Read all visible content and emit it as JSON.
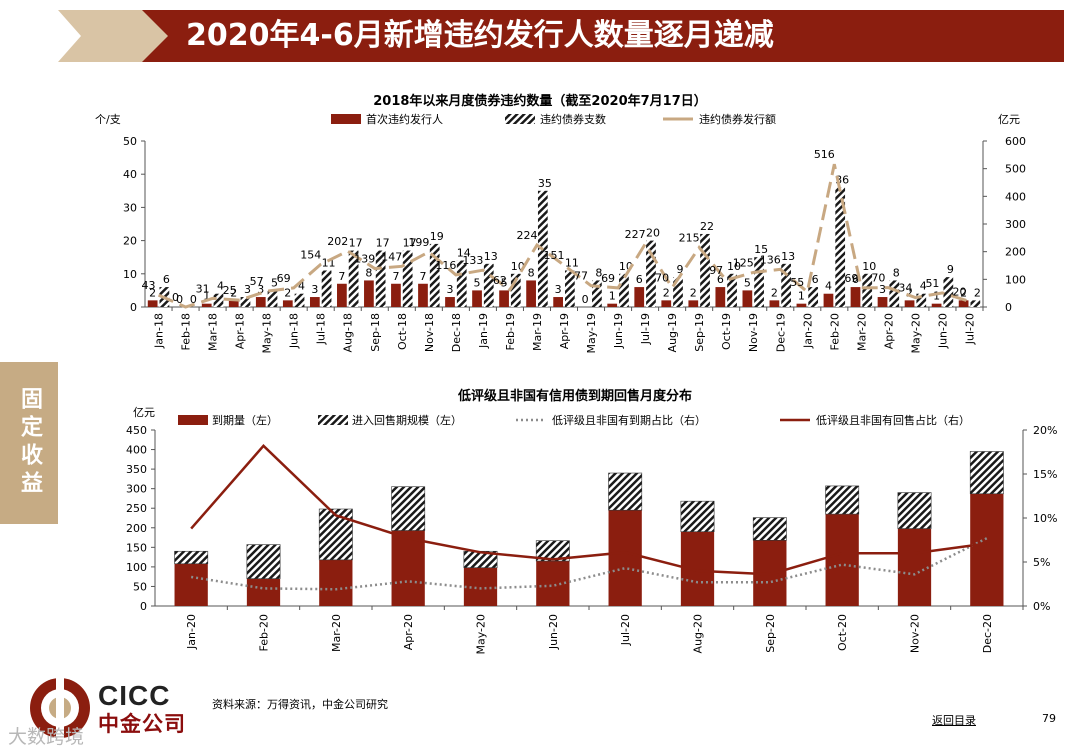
{
  "page_title": "2020年4-6月新增违约发行人数量逐月递减",
  "side_tab": "固定收益",
  "colors": {
    "brand_red": "#8b1e0f",
    "tan": "#c6ab84",
    "line_tan": "#c8a882",
    "gray_dot": "#8c8c8c"
  },
  "chart_data": [
    {
      "type": "bar",
      "title": "2018年以来月度债券违约数量（截至2020年7月17日）",
      "ylabel_left": "个/支",
      "ylabel_right": "亿元",
      "ylim_left": [
        0,
        50
      ],
      "ylim_right": [
        0,
        600
      ],
      "yticks_left": [
        "0",
        "10",
        "20",
        "30",
        "40",
        "50"
      ],
      "yticks_right": [
        "0",
        "100",
        "200",
        "300",
        "400",
        "500",
        "600"
      ],
      "categories": [
        "Jan-18",
        "Feb-18",
        "Mar-18",
        "Apr-18",
        "May-18",
        "Jun-18",
        "Jul-18",
        "Aug-18",
        "Sep-18",
        "Oct-18",
        "Nov-18",
        "Dec-18",
        "Jan-19",
        "Feb-19",
        "Mar-19",
        "Apr-19",
        "May-19",
        "Jun-19",
        "Jul-19",
        "Aug-19",
        "Sep-19",
        "Oct-19",
        "Nov-19",
        "Dec-19",
        "Jan-20",
        "Feb-20",
        "Mar-20",
        "Apr-20",
        "May-20",
        "Jun-20",
        "Jul-20"
      ],
      "series": [
        {
          "name": "首次违约发行人",
          "kind": "bar",
          "axis": "left",
          "values": [
            2,
            0,
            1,
            2,
            3,
            2,
            3,
            7,
            8,
            7,
            7,
            3,
            5,
            5,
            8,
            3,
            0,
            1,
            6,
            2,
            2,
            6,
            5,
            2,
            1,
            4,
            6,
            3,
            2,
            1,
            2
          ]
        },
        {
          "name": "违约债券支数",
          "kind": "bar",
          "axis": "left",
          "values": [
            6,
            0,
            4,
            3,
            5,
            4,
            11,
            17,
            17,
            17,
            19,
            14,
            13,
            10,
            35,
            11,
            8,
            10,
            20,
            9,
            22,
            10,
            15,
            13,
            6,
            36,
            10,
            8,
            4,
            9,
            2
          ]
        },
        {
          "name": "违约债券发行额",
          "kind": "line",
          "axis": "right",
          "values": [
            43,
            0,
            31,
            25,
            57,
            69,
            154,
            202,
            139,
            147,
            199,
            116,
            133,
            62,
            224,
            151,
            77,
            69,
            227,
            70,
            215,
            97,
            125,
            136,
            55,
            516,
            69,
            70,
            34,
            51,
            20
          ]
        }
      ]
    },
    {
      "type": "bar",
      "title": "低评级且非国有信用债到期回售月度分布",
      "ylabel_left": "亿元",
      "ylim_left": [
        0,
        450
      ],
      "ylim_right": [
        0,
        20
      ],
      "yticks_left": [
        "0",
        "50",
        "100",
        "150",
        "200",
        "250",
        "300",
        "350",
        "400",
        "450"
      ],
      "yticks_right": [
        "0%",
        "5%",
        "10%",
        "15%",
        "20%"
      ],
      "categories": [
        "Jan-20",
        "Feb-20",
        "Mar-20",
        "Apr-20",
        "May-20",
        "Jun-20",
        "Jul-20",
        "Aug-20",
        "Sep-20",
        "Oct-20",
        "Nov-20",
        "Dec-20"
      ],
      "series": [
        {
          "name": "到期量（左）",
          "kind": "bar",
          "axis": "left",
          "values": [
            108,
            70,
            118,
            193,
            98,
            115,
            245,
            190,
            168,
            235,
            198,
            287
          ]
        },
        {
          "name": "进入回售期规模（左）",
          "kind": "bar",
          "axis": "left",
          "values": [
            32,
            87,
            130,
            112,
            42,
            52,
            95,
            78,
            58,
            72,
            92,
            108
          ]
        },
        {
          "name": "低评级且非国有到期占比（右）",
          "kind": "line",
          "axis": "right",
          "values": [
            3.3,
            2.0,
            1.9,
            2.8,
            2.0,
            2.3,
            4.3,
            2.7,
            2.7,
            4.7,
            3.6,
            7.7
          ]
        },
        {
          "name": "低评级且非国有回售占比（右）",
          "kind": "line",
          "axis": "right",
          "values": [
            8.8,
            18.2,
            10.3,
            7.7,
            6.1,
            5.3,
            6.1,
            4.0,
            3.6,
            6.0,
            6.0,
            7.1
          ]
        }
      ]
    }
  ],
  "footer": {
    "source": "资料来源：万得资讯，中金公司研究",
    "back_link": "返回目录",
    "page_number": "79"
  },
  "logo": {
    "en": "CICC",
    "cn": "中金公司"
  },
  "watermark": "大数跨境"
}
